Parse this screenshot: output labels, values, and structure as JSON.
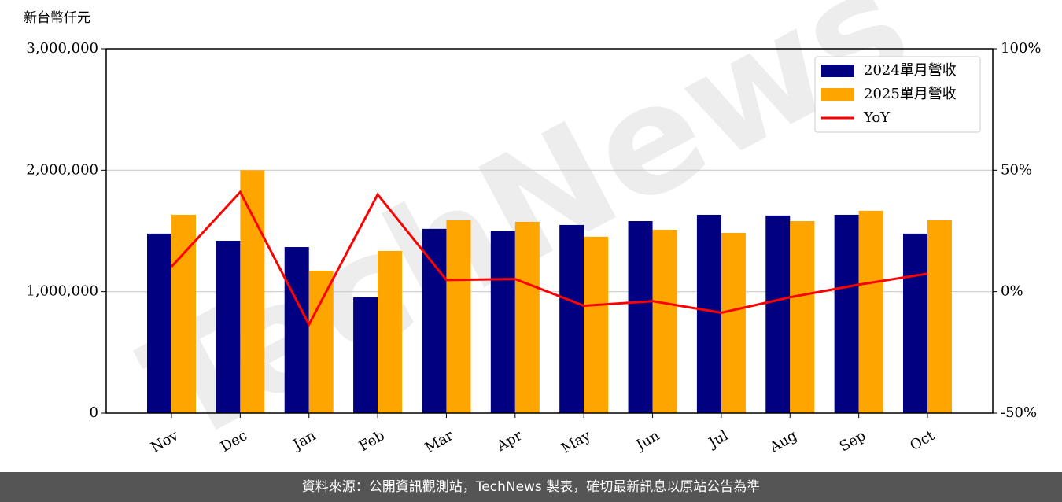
{
  "chart_data": {
    "type": "bar-line",
    "y_label": "新台幣仟元",
    "watermark": "TechNews",
    "categories": [
      "Nov",
      "Dec",
      "Jan",
      "Feb",
      "Mar",
      "Apr",
      "May",
      "Jun",
      "Jul",
      "Aug",
      "Sep",
      "Oct"
    ],
    "series": [
      {
        "name": "2024單月營收",
        "color": "#000080",
        "kind": "bar",
        "values": [
          1478000,
          1419000,
          1367000,
          953000,
          1517000,
          1497000,
          1549000,
          1581000,
          1633000,
          1627000,
          1633000,
          1478000
        ]
      },
      {
        "name": "2025單月營收",
        "color": "#ffa500",
        "kind": "bar",
        "values": [
          1633000,
          2000000,
          1173000,
          1335000,
          1588000,
          1575000,
          1452000,
          1510000,
          1484000,
          1581000,
          1666000,
          1588000
        ]
      },
      {
        "name": "YoY",
        "color": "#ff0000",
        "kind": "line",
        "axis": "y2",
        "values": [
          10.3,
          41.0,
          -13.5,
          40.0,
          4.8,
          5.2,
          -5.8,
          -3.9,
          -8.7,
          -2.3,
          2.9,
          7.4
        ]
      }
    ],
    "ylim": [
      0,
      3000000
    ],
    "yticks": [
      0,
      {
        "value": 1000000,
        "label": "1,000,000"
      },
      {
        "value": 2000000,
        "label": "2,000,000"
      },
      {
        "value": 3000000,
        "label": "3,000,000"
      }
    ],
    "y2lim": [
      -50,
      100
    ],
    "y2ticks": [
      {
        "value": -50,
        "label": "-50%"
      },
      {
        "value": 0,
        "label": "0%"
      },
      {
        "value": 50,
        "label": "50%"
      },
      {
        "value": 100,
        "label": "100%"
      }
    ],
    "grid": true,
    "legend": "upper right"
  },
  "footer": "資料來源：公開資訊觀測站，TechNews 製表，確切最新訊息以原站公告為準"
}
